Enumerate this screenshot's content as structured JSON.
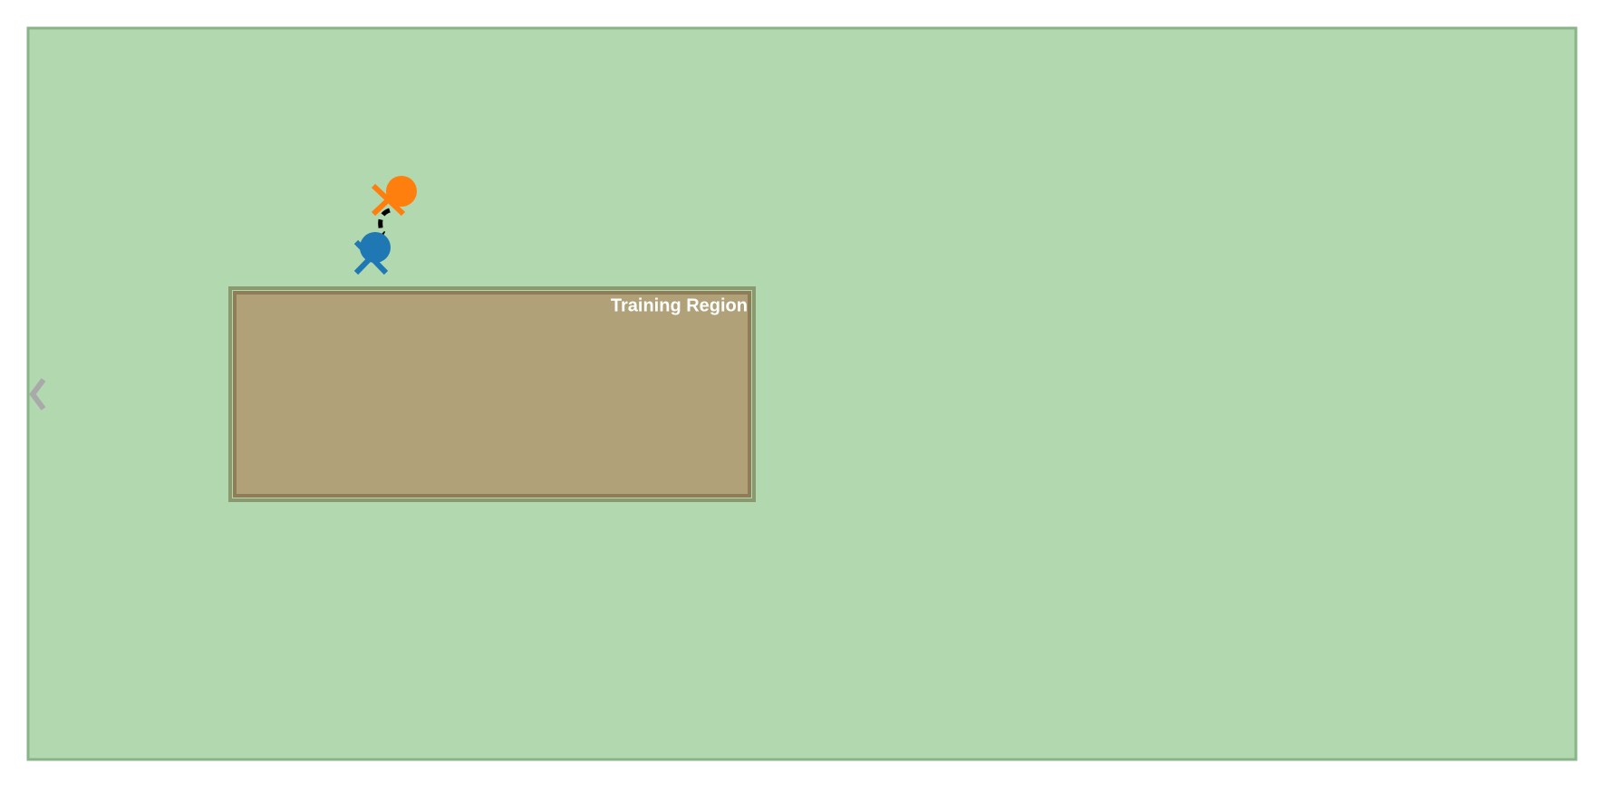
{
  "colors": {
    "field_fill": "#b2d8b0",
    "field_border": "#88b488",
    "region_fill": "#b1a178",
    "region_border": "#907c56",
    "region_outer_border": "#8a9a6e",
    "label_color": "#ffffff",
    "agent_orange": "#ff7f0e",
    "agent_blue": "#1f77b4",
    "trajectory_color": "#000000",
    "edge_marker_color": "#a9a9a9"
  },
  "training_region": {
    "label": "Training Region"
  },
  "agents": [
    {
      "name": "orange-agent",
      "color_key": "agent_orange"
    },
    {
      "name": "blue-agent",
      "color_key": "agent_blue"
    }
  ],
  "icons": {
    "edge_marker": "chevron-left-icon"
  }
}
